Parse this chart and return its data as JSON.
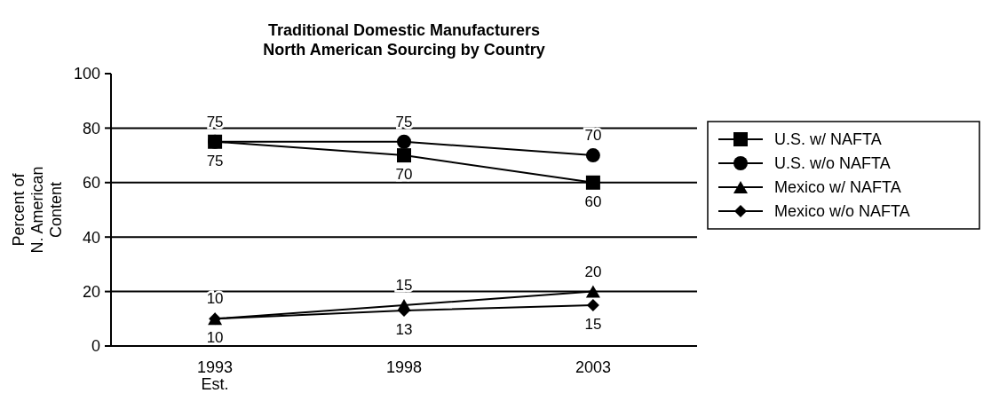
{
  "chart_data": {
    "type": "line",
    "title": "Traditional Domestic Manufacturers\nNorth American Sourcing by Country",
    "ylabel": "Percent of\nN. American\nContent",
    "categories": [
      "1993\nEst.",
      "1998",
      "2003"
    ],
    "ylim": [
      0,
      100
    ],
    "yticks": [
      0,
      20,
      40,
      60,
      80,
      100
    ],
    "grid": "y",
    "legend": "right",
    "data_labels": true,
    "line_style": "solid",
    "series": [
      {
        "name": "U.S. w/ NAFTA",
        "color": "#000000",
        "marker": "square",
        "values": [
          75,
          70,
          60
        ]
      },
      {
        "name": "U.S. w/o NAFTA",
        "color": "#000000",
        "marker": "circle",
        "values": [
          75,
          75,
          70
        ]
      },
      {
        "name": "Mexico w/ NAFTA",
        "color": "#000000",
        "marker": "triangle",
        "values": [
          10,
          15,
          20
        ]
      },
      {
        "name": "Mexico w/o NAFTA",
        "color": "#000000",
        "marker": "diamond",
        "values": [
          10,
          13,
          15
        ]
      }
    ]
  }
}
